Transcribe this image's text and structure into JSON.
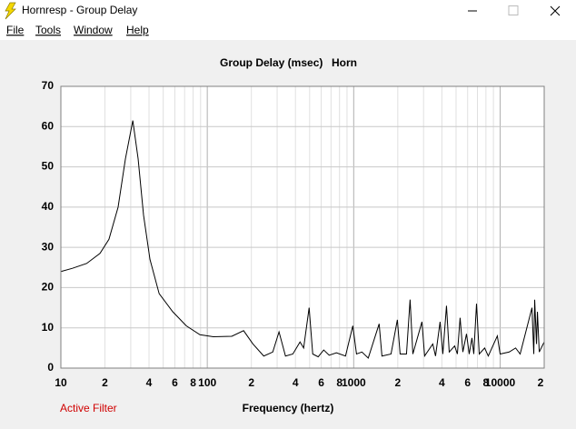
{
  "window": {
    "title": "Hornresp - Group Delay"
  },
  "menu": [
    "File",
    "Tools",
    "Window",
    "Help"
  ],
  "status": "Active Filter",
  "chart_data": {
    "type": "line",
    "title": "Group Delay (msec)",
    "subtitle": "Horn",
    "xlabel": "Frequency (hertz)",
    "xscale": "log",
    "xlim": [
      10,
      20000
    ],
    "xticks": [
      10,
      {
        "value": 20,
        "label": "2"
      },
      {
        "value": 40,
        "label": "4"
      },
      {
        "value": 60,
        "label": "6"
      },
      {
        "value": 80,
        "label": "8"
      },
      100,
      {
        "value": 200,
        "label": "2"
      },
      {
        "value": 400,
        "label": "4"
      },
      {
        "value": 600,
        "label": "6"
      },
      {
        "value": 800,
        "label": "8"
      },
      1000,
      {
        "value": 2000,
        "label": "2"
      },
      {
        "value": 4000,
        "label": "4"
      },
      {
        "value": 6000,
        "label": "6"
      },
      {
        "value": 8000,
        "label": "8"
      },
      10000,
      {
        "value": 20000,
        "label": "2"
      }
    ],
    "x_minor_grid": [
      30,
      50,
      70,
      90,
      300,
      500,
      700,
      900,
      3000,
      5000,
      7000,
      9000
    ],
    "ylim": [
      0,
      70
    ],
    "yticks": [
      0,
      10,
      20,
      30,
      40,
      50,
      60,
      70
    ],
    "grid": true,
    "color": "#000000",
    "x": [
      10,
      12,
      15,
      18.5,
      21.3,
      24.6,
      27.6,
      31,
      33.7,
      36.7,
      40.6,
      46.9,
      58.1,
      71.9,
      89.1,
      110,
      147,
      177,
      205,
      243,
      280,
      309,
      342,
      384,
      430,
      455,
      496,
      525,
      572,
      624,
      680,
      762,
      879,
      986,
      1045,
      1138,
      1257,
      1492,
      1559,
      1798,
      1987,
      2075,
      2293,
      2427,
      2535,
      2925,
      3050,
      3467,
      3622,
      3890,
      4062,
      4302,
      4490,
      4890,
      5105,
      5330,
      5565,
      5893,
      6150,
      6420,
      6607,
      6900,
      7200,
      7840,
      8300,
      9570,
      10000,
      11540,
      12760,
      13700,
      16500,
      16980,
      17220,
      17720,
      17980,
      18500,
      20000
    ],
    "values": [
      24,
      24.8,
      26,
      28.5,
      32,
      40,
      52,
      61.5,
      52,
      38,
      27,
      18.5,
      14,
      10.5,
      8.3,
      7.8,
      7.9,
      9.3,
      6,
      3,
      4,
      9,
      3,
      3.5,
      6.5,
      5,
      15,
      3.5,
      2.8,
      4.5,
      3.2,
      3.8,
      3,
      10.5,
      3.5,
      4,
      2.5,
      11,
      3,
      3.5,
      12,
      3.5,
      3.5,
      17,
      3.5,
      11.5,
      3,
      6,
      3,
      11.5,
      3.5,
      15.5,
      4,
      5.5,
      3.5,
      12.5,
      4,
      8.5,
      3.5,
      7.5,
      3.5,
      16,
      3.5,
      5,
      3,
      8,
      3.5,
      4,
      5,
      3.5,
      15,
      3.5,
      17,
      6,
      14,
      4,
      6.5
    ]
  }
}
